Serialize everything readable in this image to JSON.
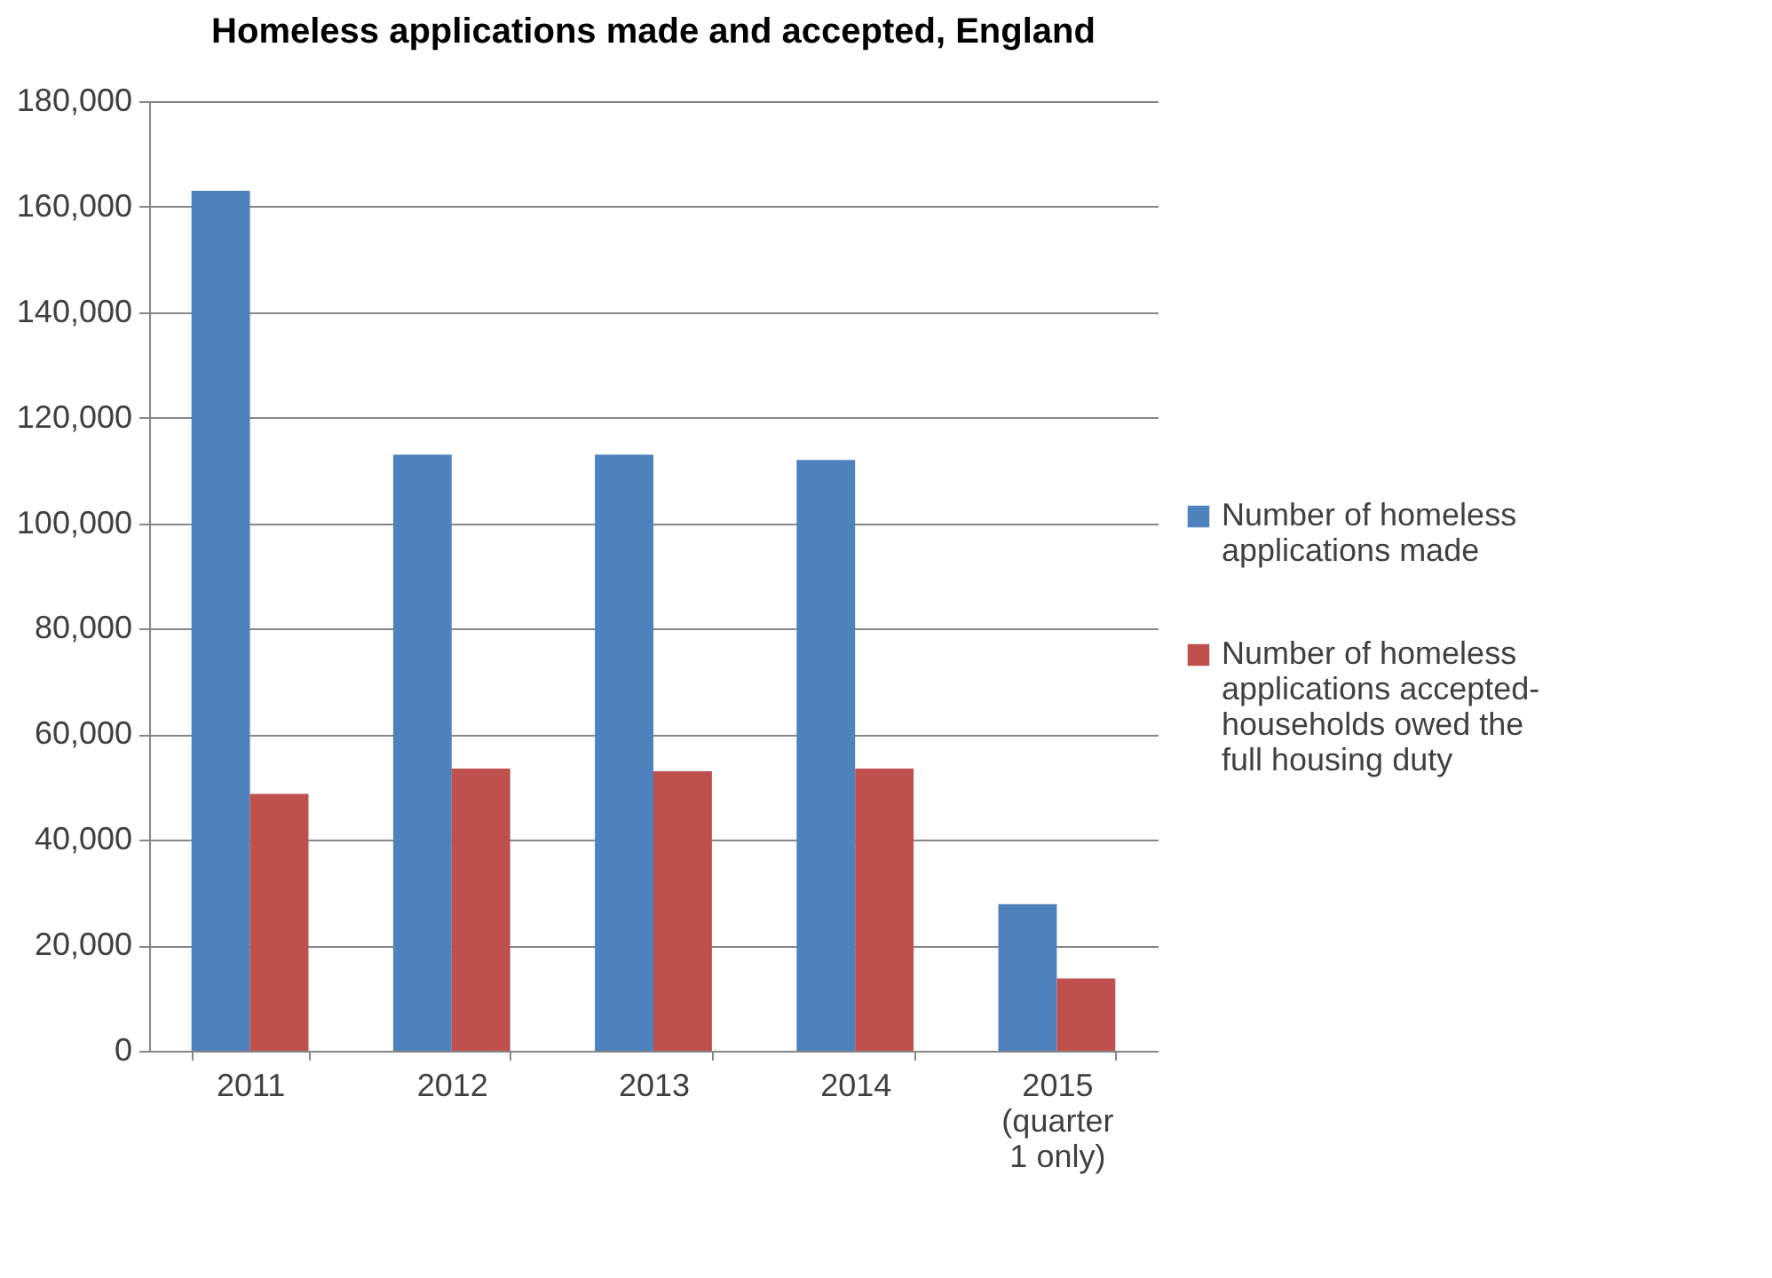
{
  "chart_data": {
    "type": "bar",
    "title": "Homeless applications made and accepted, England",
    "categories": [
      "2011",
      "2012",
      "2013",
      "2014",
      "2015 (quarter 1 only)"
    ],
    "series": [
      {
        "name": "Number of homeless applications made",
        "color": "#4f81bd",
        "values": [
          163000,
          113000,
          113000,
          112000,
          27800
        ]
      },
      {
        "name": "Number of homeless applications accepted- households owed the full housing duty",
        "color": "#c0504d",
        "values": [
          48700,
          53500,
          53000,
          53500,
          13700
        ]
      }
    ],
    "ylim": [
      0,
      180000
    ],
    "yticks": [
      0,
      {
        "value": 20000,
        "label": "20,000"
      },
      {
        "value": 40000,
        "label": "40,000"
      },
      {
        "value": 60000,
        "label": "60,000"
      },
      {
        "value": 80000,
        "label": "80,000"
      },
      {
        "value": 100000,
        "label": "100,000"
      },
      {
        "value": 120000,
        "label": "120,000"
      },
      {
        "value": 140000,
        "label": "140,000"
      },
      {
        "value": 160000,
        "label": "160,000"
      },
      {
        "value": 180000,
        "label": "180,000"
      }
    ],
    "grid": "y",
    "legend": "right"
  }
}
